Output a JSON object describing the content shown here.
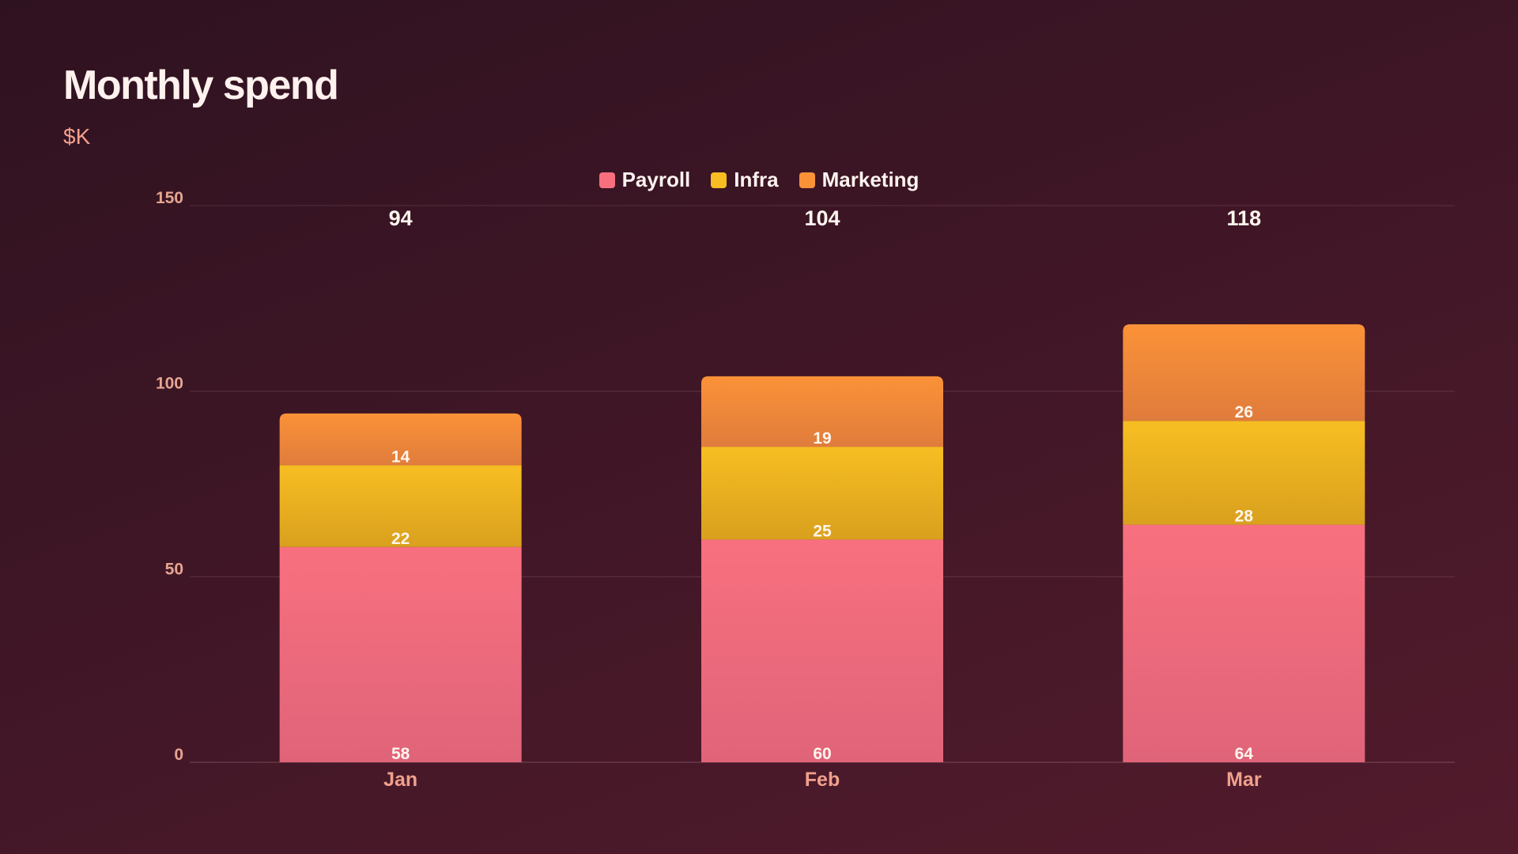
{
  "chart_data": {
    "type": "bar",
    "stacked": true,
    "title": "Monthly spend",
    "subtitle": "$K",
    "categories": [
      "Jan",
      "Feb",
      "Mar"
    ],
    "series": [
      {
        "name": "Payroll",
        "values": [
          58,
          60,
          64
        ],
        "color": "#f8707f"
      },
      {
        "name": "Infra",
        "values": [
          22,
          25,
          28
        ],
        "color": "#f7bd22"
      },
      {
        "name": "Marketing",
        "values": [
          14,
          19,
          26
        ],
        "color": "#fb9238"
      }
    ],
    "totals": [
      94,
      104,
      118
    ],
    "ylim": [
      0,
      150
    ],
    "yticks": [
      0,
      50,
      100,
      150
    ],
    "grid": true,
    "legend": "top-center"
  }
}
